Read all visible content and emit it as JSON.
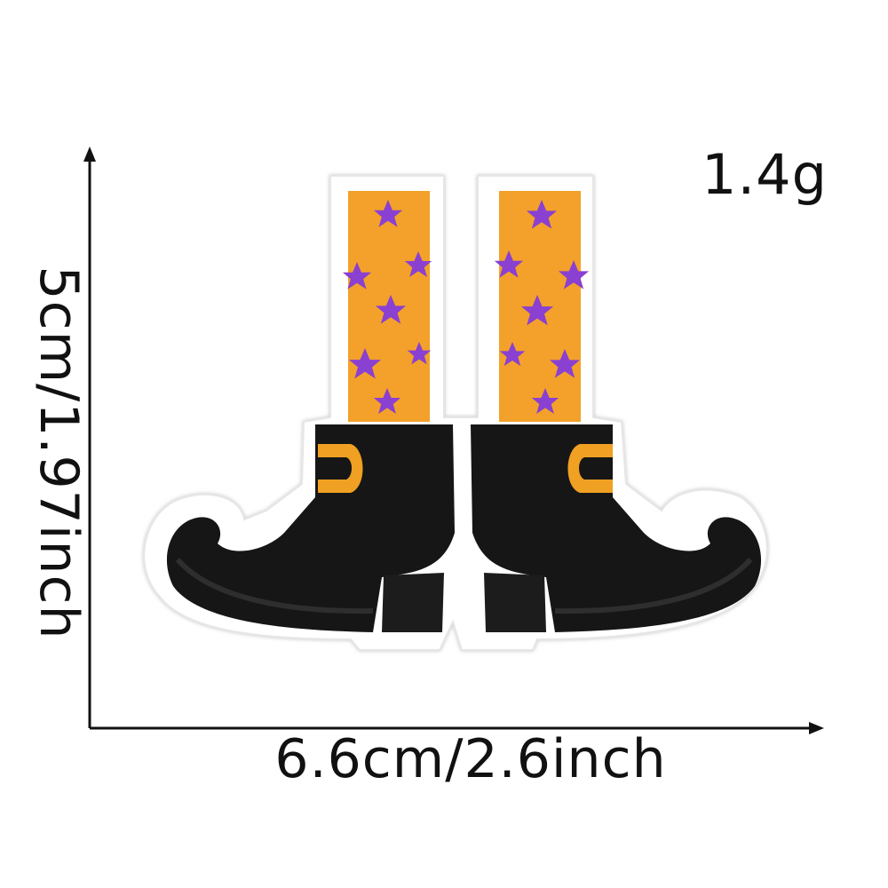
{
  "product": {
    "weight_label": "1.4g",
    "width_label": "6.6cm/2.6inch",
    "height_label": "5cm/1.97inch",
    "illustration_icon": "witch-boots-patch-icon"
  },
  "colors": {
    "sock": "#f3a12c",
    "star": "#8a3fd0",
    "boot": "#141414",
    "buckle": "#f0a020",
    "border": "#ffffff",
    "arrow": "#111111"
  }
}
